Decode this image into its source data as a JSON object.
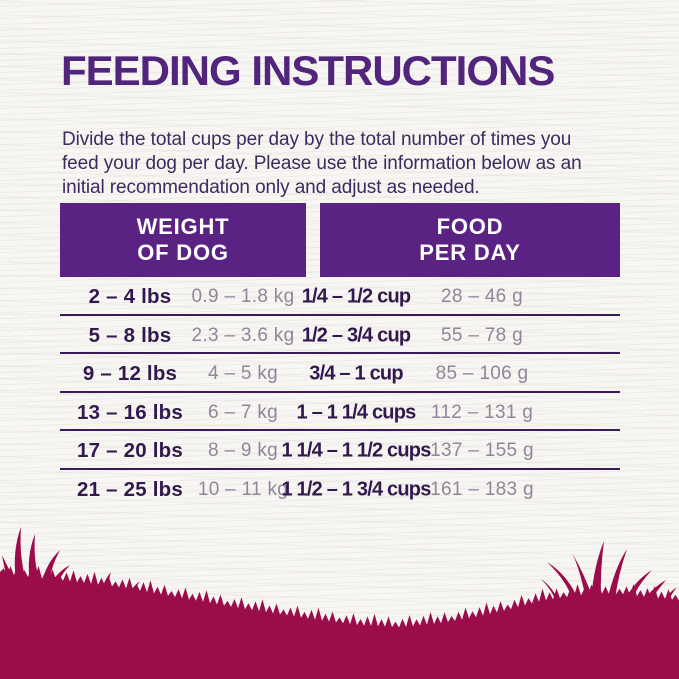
{
  "title": "FEEDING INSTRUCTIONS",
  "instructions": {
    "lines": [
      "Divide the total cups per day by the total number of times you",
      "feed your dog per day. Please use the information below as an",
      "initial recommendation only and adjust as needed."
    ]
  },
  "table": {
    "headers": [
      {
        "lines": [
          "WEIGHT",
          "OF DOG"
        ]
      },
      {
        "lines": [
          "FOOD",
          "PER DAY"
        ]
      }
    ],
    "rows": [
      {
        "lbs": "2 – 4 lbs",
        "kg": "0.9 – 1.8 kg",
        "cups": "1/4 – 1/2 cup",
        "grams": "28 – 46 g"
      },
      {
        "lbs": "5 – 8 lbs",
        "kg": "2.3 – 3.6 kg",
        "cups": "1/2 – 3/4 cup",
        "grams": "55 – 78 g"
      },
      {
        "lbs": "9 – 12 lbs",
        "kg": "4 – 5 kg",
        "cups": "3/4 – 1 cup",
        "grams": "85 – 106 g"
      },
      {
        "lbs": "13 – 16 lbs",
        "kg": "6 – 7 kg",
        "cups": "1 – 1 1/4 cups",
        "grams": "112 – 131 g"
      },
      {
        "lbs": "17 – 20 lbs",
        "kg": "8 – 9 kg",
        "cups": "1 1/4 – 1 1/2 cups",
        "grams": "137 – 155 g"
      },
      {
        "lbs": "21 – 25 lbs",
        "kg": "10 – 11 kg",
        "cups": "1 1/2 – 1 3/4 cups",
        "grams": "161 – 183 g"
      }
    ]
  },
  "colors": {
    "brand_purple": "#5A2383",
    "title_purple": "#52257D",
    "dark_text": "#33184E",
    "muted_text": "#8F8699",
    "rule_line": "#3A1B55",
    "grass_crimson": "#9B0C4B",
    "background": "#F7F6F3"
  }
}
